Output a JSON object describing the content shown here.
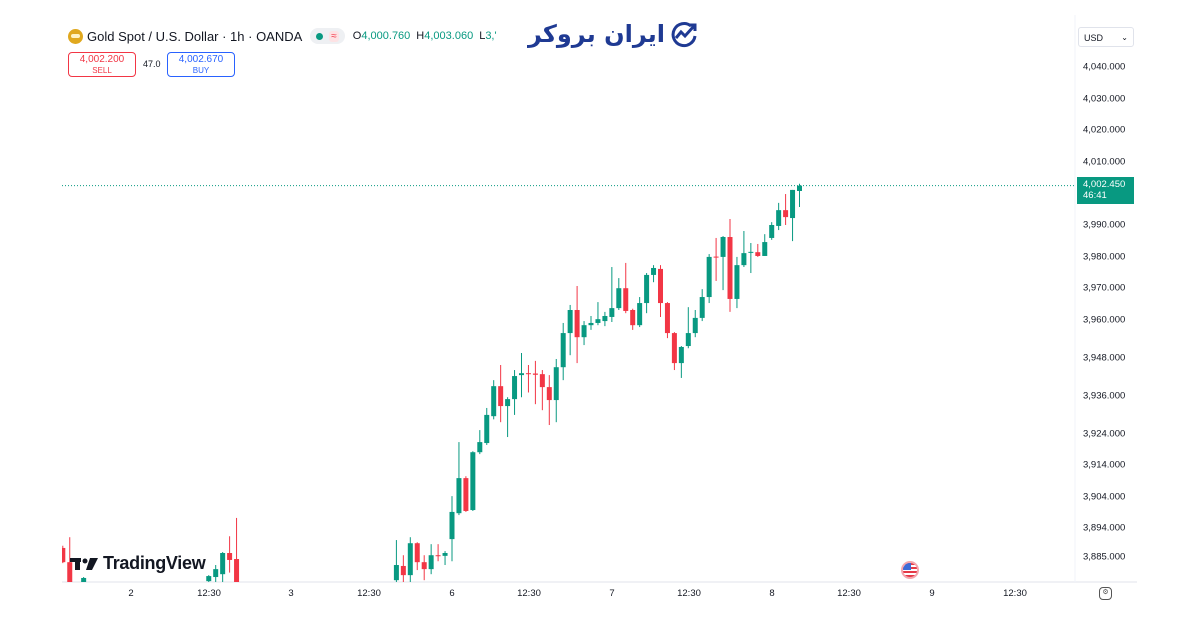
{
  "header": {
    "symbol_title": "Gold Spot / U.S. Dollar · 1h · OANDA",
    "ohlc": {
      "o_label": "O",
      "o": "4,000.760",
      "h_label": "H",
      "h": "4,003.060",
      "l_label": "L",
      "l": "3,'"
    },
    "sell": {
      "price": "4,002.200",
      "label": "SELL"
    },
    "spread": "47.0",
    "buy": {
      "price": "4,002.670",
      "label": "BUY"
    }
  },
  "logo": {
    "text": "ایران بروکر"
  },
  "currency_select": {
    "value": "USD"
  },
  "price_tag": {
    "price": "4,002.450",
    "countdown": "46:41"
  },
  "watermark": {
    "text": "TradingView"
  },
  "icons": {
    "symbol": "gold-coin-icon",
    "status": "market-open-dot-icon",
    "event": "us-flag-event-icon",
    "settings": "gear-icon",
    "dropdown": "chevron-down-icon"
  },
  "colors": {
    "up": "#089981",
    "down": "#F23645",
    "price_line": "#089981",
    "sell": "#F23645",
    "buy": "#2962FF"
  },
  "chart_data": {
    "type": "candlestick",
    "interval": "1h",
    "ylim": [
      3877,
      4055
    ],
    "y_ticks": [
      "4,040.000",
      "4,030.000",
      "4,020.000",
      "4,010.000",
      "3,990.000",
      "3,980.000",
      "3,970.000",
      "3,960.000",
      "3,948.000",
      "3,936.000",
      "3,924.000",
      "3,914.000",
      "3,904.000",
      "3,894.000",
      "3,885.000"
    ],
    "x_ticks": [
      "2",
      "12:30",
      "3",
      "12:30",
      "6",
      "12:30",
      "7",
      "12:30",
      "8",
      "12:30",
      "9",
      "12:30"
    ],
    "current_price": 4002.45,
    "candles_ohlc": [
      [
        3887.8,
        3888.5,
        3883.0,
        3883.3
      ],
      [
        3883.3,
        3891.2,
        3875,
        3876
      ],
      null,
      [
        3876,
        3878.6,
        3875,
        3878.3
      ],
      null,
      null,
      null,
      null,
      null,
      null,
      null,
      null,
      null,
      null,
      null,
      null,
      null,
      null,
      null,
      null,
      null,
      [
        3877.3,
        3879.2,
        3876,
        3878.9
      ],
      [
        3878.6,
        3882.4,
        3877,
        3881.1
      ],
      [
        3879.5,
        3886.5,
        3877,
        3886.2
      ],
      [
        3886.2,
        3891.5,
        3880,
        3884.0
      ],
      [
        3884.3,
        3897.3,
        3874,
        3876
      ],
      null,
      null,
      null,
      null,
      null,
      null,
      null,
      null,
      null,
      null,
      null,
      null,
      null,
      null,
      null,
      null,
      null,
      null,
      null,
      null,
      null,
      null,
      [
        3877.6,
        3890.3,
        3876,
        3882.4
      ],
      [
        3882.1,
        3885.5,
        3877.0,
        3879.2
      ],
      [
        3879.2,
        3891.2,
        3876.5,
        3889.3
      ],
      [
        3889.3,
        3889.6,
        3880.8,
        3883.3
      ],
      [
        3883.3,
        3885.5,
        3877.6,
        3881.1
      ],
      [
        3881.1,
        3889.0,
        3879.5,
        3885.5
      ],
      [
        3885.5,
        3889.0,
        3883.6,
        3885.3
      ],
      [
        3885.3,
        3886.8,
        3882.4,
        3886.2
      ],
      [
        3890.6,
        3904.2,
        3883.6,
        3899.2
      ],
      [
        3898.8,
        3921.3,
        3898.2,
        3909.9
      ],
      [
        3909.9,
        3910.5,
        3899.2,
        3899.5
      ],
      [
        3899.8,
        3918.4,
        3899.5,
        3918.1
      ],
      [
        3918.1,
        3925.1,
        3917.5,
        3921.3
      ],
      [
        3921.0,
        3932.1,
        3920.4,
        3929.9
      ],
      [
        3929.5,
        3940.9,
        3928.5,
        3939.0
      ],
      [
        3939.0,
        3945.7,
        3927.6,
        3932.7
      ],
      [
        3932.7,
        3935.5,
        3922.9,
        3934.9
      ],
      [
        3934.9,
        3944.1,
        3929.9,
        3942.2
      ],
      [
        3942.5,
        3949.5,
        3935.5,
        3943.1
      ],
      [
        3943.1,
        3945.7,
        3937.0,
        3942.8
      ],
      [
        3943.0,
        3947.0,
        3933.3,
        3942.6
      ],
      [
        3942.8,
        3944.1,
        3931.4,
        3938.7
      ],
      [
        3938.7,
        3942.5,
        3926.7,
        3934.6
      ],
      [
        3934.6,
        3947.6,
        3927.6,
        3945.0
      ],
      [
        3945.0,
        3959.0,
        3940.9,
        3955.8
      ],
      [
        3955.8,
        3964.7,
        3948.8,
        3963.1
      ],
      [
        3963.1,
        3970.7,
        3946.3,
        3954.5
      ],
      [
        3954.5,
        3959.6,
        3952.0,
        3958.3
      ],
      [
        3958.3,
        3961.2,
        3956.8,
        3959.0
      ],
      [
        3959.0,
        3965.6,
        3958.3,
        3960.2
      ],
      [
        3959.6,
        3962.5,
        3958.0,
        3961.2
      ],
      [
        3960.9,
        3976.7,
        3959.3,
        3963.7
      ],
      [
        3963.7,
        3973.2,
        3963.1,
        3970.0
      ],
      [
        3970.0,
        3978.0,
        3962.1,
        3962.8
      ],
      [
        3963.1,
        3963.5,
        3956.8,
        3958.3
      ],
      [
        3958.3,
        3967.2,
        3957.7,
        3965.3
      ],
      [
        3965.3,
        3974.8,
        3962.1,
        3974.2
      ],
      [
        3974.2,
        3977.3,
        3971.9,
        3976.4
      ],
      [
        3976.1,
        3977.3,
        3960.9,
        3965.3
      ],
      [
        3965.3,
        3965.6,
        3954.2,
        3955.8
      ],
      [
        3955.8,
        3956.1,
        3944.1,
        3946.3
      ],
      [
        3946.3,
        3951.7,
        3941.6,
        3951.4
      ],
      [
        3951.7,
        3964.0,
        3951.0,
        3955.8
      ],
      [
        3955.8,
        3963.1,
        3954.5,
        3960.6
      ],
      [
        3960.6,
        3969.7,
        3959.6,
        3967.2
      ],
      [
        3967.2,
        3980.8,
        3965.3,
        3979.9
      ],
      [
        3980.0,
        3985.9,
        3972.3,
        3979.7
      ],
      [
        3979.9,
        3986.5,
        3969.4,
        3986.2
      ],
      [
        3986.2,
        3991.9,
        3962.5,
        3966.6
      ],
      [
        3966.6,
        3979.9,
        3963.7,
        3977.3
      ],
      [
        3977.3,
        3988.1,
        3976.7,
        3981.1
      ],
      [
        3981.3,
        3984.3,
        3974.8,
        3981.5
      ],
      [
        3981.4,
        3984.0,
        3979.9,
        3980.2
      ],
      [
        3980.2,
        3987.1,
        3980.2,
        3984.6
      ],
      [
        3985.9,
        3990.9,
        3985.3,
        3990.0
      ],
      [
        3989.7,
        3997.0,
        3988.4,
        3994.7
      ],
      [
        3994.7,
        3999.8,
        3990.0,
        3992.5
      ],
      [
        3992.2,
        4001.1,
        3984.9,
        4001.1
      ],
      [
        4000.76,
        4003.06,
        3995.7,
        4002.45
      ]
    ]
  }
}
